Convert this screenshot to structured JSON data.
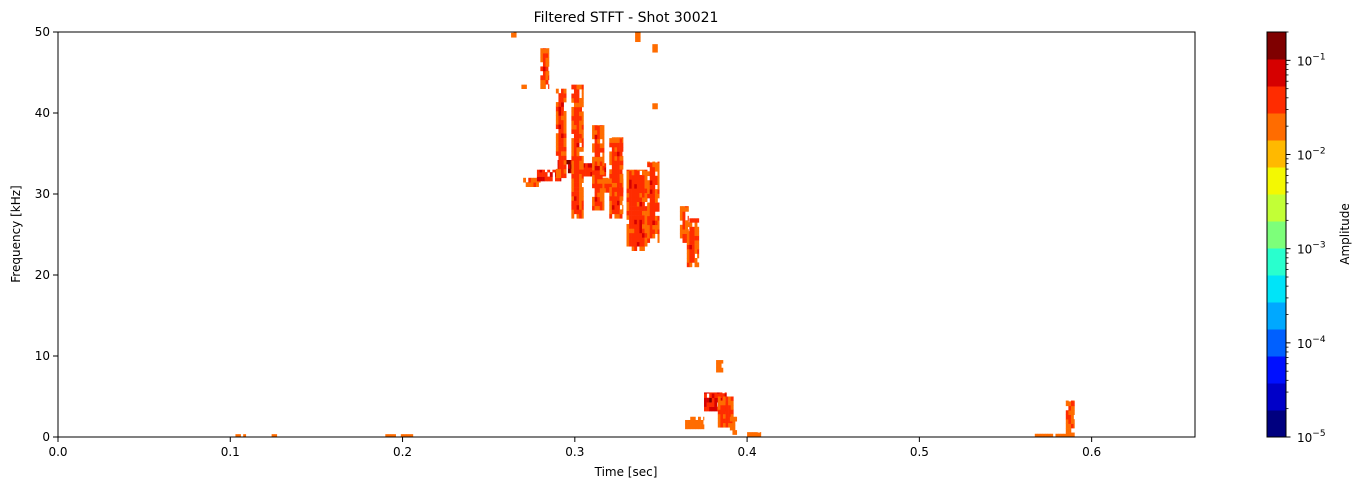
{
  "chart_data": {
    "type": "heatmap",
    "title": "Filtered STFT - Shot 30021",
    "xlabel": "Time [sec]",
    "ylabel": "Frequency [kHz]",
    "xlim": [
      0.0,
      0.66
    ],
    "ylim": [
      0,
      50
    ],
    "x_ticks": [
      0.0,
      0.1,
      0.2,
      0.3,
      0.4,
      0.5,
      0.6
    ],
    "x_tick_labels": [
      "0.0",
      "0.1",
      "0.2",
      "0.3",
      "0.4",
      "0.5",
      "0.6"
    ],
    "y_ticks": [
      0,
      10,
      20,
      30,
      40,
      50
    ],
    "y_tick_labels": [
      "0",
      "10",
      "20",
      "30",
      "40",
      "50"
    ],
    "grid": false,
    "colormap": "jet",
    "colorbar": {
      "label": "Amplitude",
      "scale": "log",
      "range": [
        1e-05,
        0.2
      ],
      "tick_values": [
        1e-05,
        0.0001,
        0.001,
        0.01,
        0.1
      ],
      "tick_labels": [
        "10",
        "10",
        "10",
        "10",
        "10"
      ],
      "tick_exponents": [
        "−5",
        "−4",
        "−3",
        "−2",
        "−1"
      ],
      "levels": [
        "#00007f",
        "#0000c8",
        "#0010ff",
        "#0060ff",
        "#00a8ff",
        "#00e4f8",
        "#29ffce",
        "#7dff7a",
        "#c2ff36",
        "#f4f802",
        "#ffb900",
        "#ff6c00",
        "#ff2c00",
        "#d60000",
        "#7f0000"
      ]
    },
    "cell_size": {
      "dt": 0.0015,
      "df": 0.55
    },
    "regions": [
      {
        "name": "chirp-ridge",
        "segments": [
          {
            "t": [
              0.27,
              0.28
            ],
            "f": [
              30.9,
              32.0
            ],
            "level": 12
          },
          {
            "t": [
              0.278,
              0.292
            ],
            "f": [
              31.6,
              33.0
            ],
            "level": 13
          },
          {
            "t": [
              0.29,
              0.305
            ],
            "f": [
              32.6,
              34.2
            ],
            "level": 14
          },
          {
            "t": [
              0.303,
              0.318
            ],
            "f": [
              32.2,
              33.8
            ],
            "level": 13
          },
          {
            "t": [
              0.315,
              0.328
            ],
            "f": [
              30.2,
              32.0
            ],
            "level": 12
          }
        ]
      },
      {
        "name": "burst-a",
        "t": [
          0.28,
          0.285
        ],
        "f": [
          43.0,
          48.0
        ],
        "level": 12
      },
      {
        "name": "burst-b",
        "t": [
          0.289,
          0.295
        ],
        "f": [
          32.0,
          43.0
        ],
        "level": 12
      },
      {
        "name": "burst-c",
        "t": [
          0.298,
          0.305
        ],
        "f": [
          27.0,
          43.5
        ],
        "level": 12
      },
      {
        "name": "burst-d",
        "t": [
          0.31,
          0.317
        ],
        "f": [
          28.0,
          38.5
        ],
        "level": 12
      },
      {
        "name": "burst-e",
        "t": [
          0.32,
          0.328
        ],
        "f": [
          27.0,
          37.0
        ],
        "level": 12
      },
      {
        "name": "burst-f",
        "t": [
          0.33,
          0.342
        ],
        "f": [
          23.0,
          33.0
        ],
        "level": 12
      },
      {
        "name": "burst-g",
        "t": [
          0.342,
          0.349
        ],
        "f": [
          24.0,
          34.0
        ],
        "level": 12
      },
      {
        "name": "burst-h",
        "t": [
          0.361,
          0.366
        ],
        "f": [
          24.0,
          28.5
        ],
        "level": 12
      },
      {
        "name": "burst-i",
        "t": [
          0.365,
          0.372
        ],
        "f": [
          21.0,
          27.0
        ],
        "level": 12
      },
      {
        "name": "low-a",
        "t": [
          0.375,
          0.388
        ],
        "f": [
          3.2,
          5.5
        ],
        "level": 13
      },
      {
        "name": "low-b",
        "t": [
          0.383,
          0.392
        ],
        "f": [
          1.2,
          5.0
        ],
        "level": 12
      },
      {
        "name": "low-c",
        "t": [
          0.39,
          0.394
        ],
        "f": [
          0.3,
          2.5
        ],
        "level": 11
      },
      {
        "name": "low-d",
        "t": [
          0.382,
          0.386
        ],
        "f": [
          8.0,
          9.5
        ],
        "level": 11
      },
      {
        "name": "low-e",
        "t": [
          0.364,
          0.375
        ],
        "f": [
          1.0,
          2.5
        ],
        "level": 11
      },
      {
        "name": "low-f",
        "t": [
          0.4,
          0.408
        ],
        "f": [
          0.0,
          0.6
        ],
        "level": 11
      },
      {
        "name": "late-a",
        "t": [
          0.585,
          0.59
        ],
        "f": [
          0.0,
          4.5
        ],
        "level": 12
      },
      {
        "name": "late-b",
        "t": [
          0.567,
          0.585
        ],
        "f": [
          0.0,
          0.4
        ],
        "level": 11
      },
      {
        "name": "early-a",
        "t": [
          0.103,
          0.112
        ],
        "f": [
          0.0,
          0.35
        ],
        "level": 11
      },
      {
        "name": "early-b",
        "t": [
          0.124,
          0.127
        ],
        "f": [
          0.0,
          0.35
        ],
        "level": 11
      },
      {
        "name": "early-c",
        "t": [
          0.19,
          0.206
        ],
        "f": [
          0.0,
          0.35
        ],
        "level": 11
      },
      {
        "name": "top-a",
        "t": [
          0.263,
          0.266
        ],
        "f": [
          48.8,
          50.0
        ],
        "level": 11
      },
      {
        "name": "top-b",
        "t": [
          0.335,
          0.338
        ],
        "f": [
          48.8,
          50.0
        ],
        "level": 11
      },
      {
        "name": "top-c",
        "t": [
          0.345,
          0.348
        ],
        "f": [
          47.5,
          48.5
        ],
        "level": 11
      },
      {
        "name": "spot-a",
        "t": [
          0.269,
          0.272
        ],
        "f": [
          43.0,
          43.5
        ],
        "level": 11
      },
      {
        "name": "spot-b",
        "t": [
          0.345,
          0.348
        ],
        "f": [
          40.5,
          41.2
        ],
        "level": 11
      }
    ]
  }
}
